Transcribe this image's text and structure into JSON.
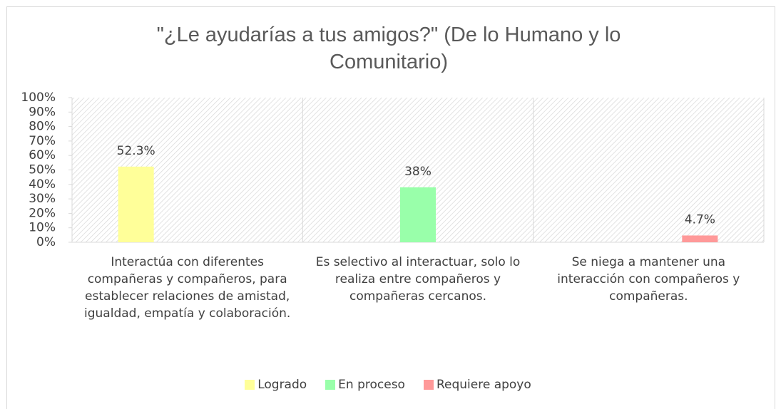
{
  "chart_data": {
    "type": "bar",
    "title": "\"¿Le ayudarías a tus amigos?\" (De lo Humano y lo Comunitario)",
    "categories": [
      "Interactúa con diferentes compañeras y compañeros, para establecer relaciones de amistad, igualdad, empatía y colaboración.",
      "Es selectivo al interactuar, solo lo realiza entre compañeros y compañeras cercanos.",
      "Se niega a mantener una interacción con compañeros y compañeras."
    ],
    "series": [
      {
        "name": "Logrado",
        "color": "#ffff99",
        "values": [
          52.3,
          null,
          null
        ],
        "value_labels": [
          "52.3%",
          null,
          null
        ]
      },
      {
        "name": "En proceso",
        "color": "#99ffaa",
        "values": [
          null,
          38,
          null
        ],
        "value_labels": [
          null,
          "38%",
          null
        ]
      },
      {
        "name": "Requiere apoyo",
        "color": "#ff9999",
        "values": [
          null,
          null,
          4.7
        ],
        "value_labels": [
          null,
          null,
          "4.7%"
        ]
      }
    ],
    "ylim": [
      0,
      100
    ],
    "yticks": [
      {
        "value": 0,
        "label": "0%"
      },
      {
        "value": 10,
        "label": "10%"
      },
      {
        "value": 20,
        "label": "20%"
      },
      {
        "value": 30,
        "label": "30%"
      },
      {
        "value": 40,
        "label": "40%"
      },
      {
        "value": 50,
        "label": "50%"
      },
      {
        "value": 60,
        "label": "60%"
      },
      {
        "value": 70,
        "label": "70%"
      },
      {
        "value": 80,
        "label": "80%"
      },
      {
        "value": 90,
        "label": "90%"
      },
      {
        "value": 100,
        "label": "100%"
      }
    ],
    "legend": "bottom"
  }
}
